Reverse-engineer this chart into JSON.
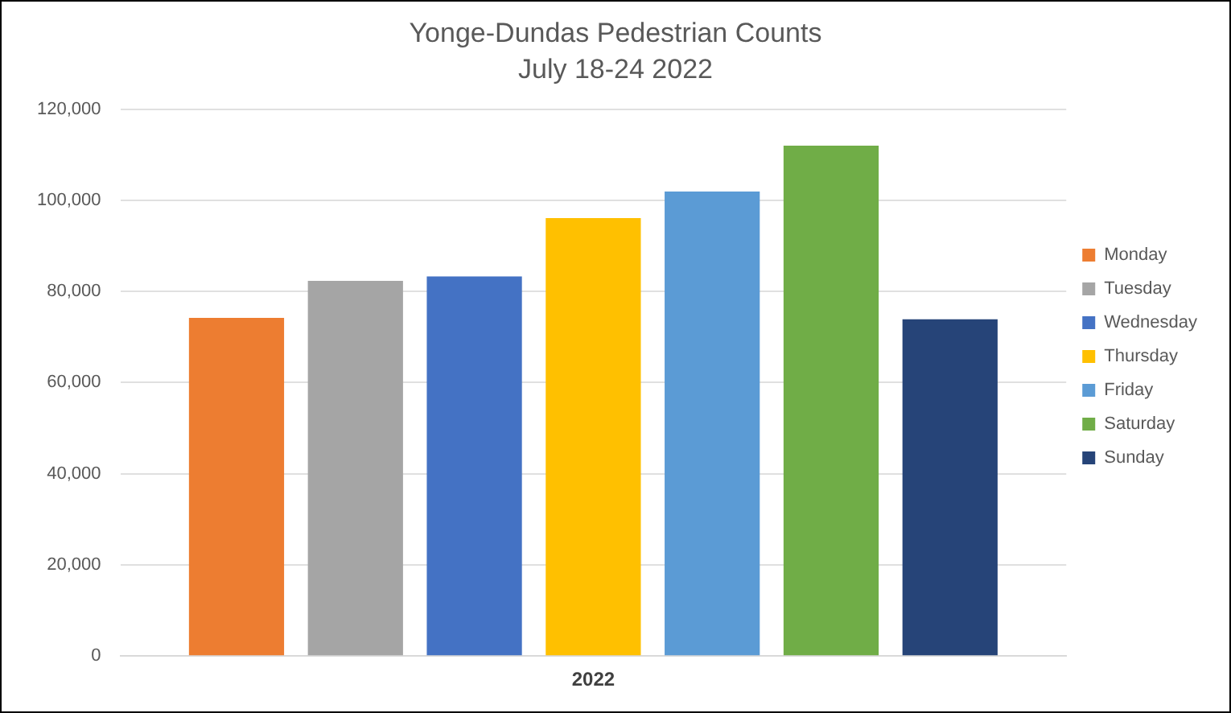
{
  "chart_data": {
    "type": "bar",
    "title": "Yonge-Dundas Pedestrian Counts",
    "subtitle": "July 18-24 2022",
    "categories": [
      "2022"
    ],
    "series": [
      {
        "name": "Monday",
        "color": "#ed7d31",
        "values": [
          74200
        ]
      },
      {
        "name": "Tuesday",
        "color": "#a5a5a5",
        "values": [
          82300
        ]
      },
      {
        "name": "Wednesday",
        "color": "#4472c4",
        "values": [
          83300
        ]
      },
      {
        "name": "Thursday",
        "color": "#ffc000",
        "values": [
          96100
        ]
      },
      {
        "name": "Friday",
        "color": "#5b9bd5",
        "values": [
          101900
        ]
      },
      {
        "name": "Saturday",
        "color": "#70ad47",
        "values": [
          112000
        ]
      },
      {
        "name": "Sunday",
        "color": "#264478",
        "values": [
          73900
        ]
      }
    ],
    "ylim": [
      0,
      120000
    ],
    "yticks": [
      0,
      {
        "value": 20000,
        "label": "20,000"
      },
      {
        "value": 40000,
        "label": "40,000"
      },
      {
        "value": 60000,
        "label": "60,000"
      },
      {
        "value": 80000,
        "label": "80,000"
      },
      {
        "value": 100000,
        "label": "100,000"
      },
      {
        "value": 120000,
        "label": "120,000"
      }
    ],
    "grid": "y",
    "legend": "right"
  }
}
